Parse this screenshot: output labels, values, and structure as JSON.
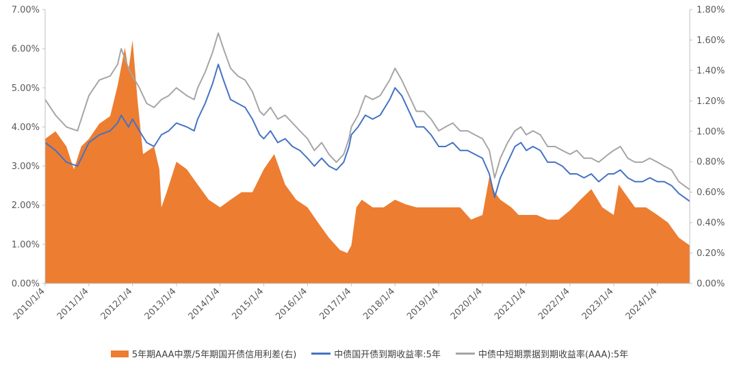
{
  "chart_data": {
    "type": "area+line",
    "title": "",
    "xlabel": "",
    "ylabel_left": "",
    "ylabel_right": "",
    "grid": false,
    "legend_position": "bottom",
    "x_range": [
      "2010/1/4",
      "2024/9/30"
    ],
    "x_ticks": [
      "2010/1/4",
      "2011/1/4",
      "2012/1/4",
      "2013/1/4",
      "2014/1/4",
      "2015/1/4",
      "2016/1/4",
      "2017/1/4",
      "2018/1/4",
      "2019/1/4",
      "2020/1/4",
      "2021/1/4",
      "2022/1/4",
      "2023/1/4",
      "2024/1/4"
    ],
    "y_left": {
      "range": [
        0,
        7
      ],
      "ticks": [
        "0.00%",
        "1.00%",
        "2.00%",
        "3.00%",
        "4.00%",
        "5.00%",
        "6.00%",
        "7.00%"
      ]
    },
    "y_right": {
      "range": [
        0,
        1.8
      ],
      "ticks": [
        "0.00%",
        "0.20%",
        "0.40%",
        "0.60%",
        "0.80%",
        "1.00%",
        "1.20%",
        "1.40%",
        "1.60%",
        "1.80%"
      ]
    },
    "series": [
      {
        "name": "5年期AAA中票/5年期国开债信用利差(右)",
        "type": "area",
        "axis": "right",
        "color": "#ED7D31",
        "x": [
          "2010/1/4",
          "2010/4/1",
          "2010/7/1",
          "2010/9/1",
          "2010/11/1",
          "2011/1/4",
          "2011/4/1",
          "2011/7/1",
          "2011/9/1",
          "2011/11/1",
          "2011/12/1",
          "2012/1/4",
          "2012/2/15",
          "2012/4/1",
          "2012/7/1",
          "2012/8/15",
          "2012/9/1",
          "2012/10/15",
          "2013/1/4",
          "2013/4/1",
          "2013/7/1",
          "2013/10/1",
          "2014/1/4",
          "2014/4/1",
          "2014/7/1",
          "2014/10/1",
          "2015/1/4",
          "2015/4/1",
          "2015/7/1",
          "2015/10/1",
          "2016/1/4",
          "2016/4/1",
          "2016/7/1",
          "2016/10/1",
          "2016/12/1",
          "2017/1/4",
          "2017/2/15",
          "2017/4/1",
          "2017/7/1",
          "2017/10/1",
          "2018/1/4",
          "2018/4/1",
          "2018/7/1",
          "2018/10/1",
          "2019/1/4",
          "2019/4/1",
          "2019/7/1",
          "2019/10/1",
          "2020/1/4",
          "2020/3/1",
          "2020/4/15",
          "2020/6/1",
          "2020/9/1",
          "2020/11/1",
          "2021/1/4",
          "2021/4/1",
          "2021/7/1",
          "2021/10/1",
          "2022/1/4",
          "2022/4/1",
          "2022/7/1",
          "2022/10/1",
          "2023/1/4",
          "2023/2/15",
          "2023/4/1",
          "2023/7/1",
          "2023/10/1",
          "2024/1/4",
          "2024/4/1",
          "2024/7/1",
          "2024/9/30"
        ],
        "values": [
          0.95,
          1.0,
          0.9,
          0.75,
          0.9,
          0.95,
          1.05,
          1.1,
          1.3,
          1.55,
          1.4,
          1.6,
          1.2,
          0.85,
          0.9,
          0.75,
          0.5,
          0.6,
          0.8,
          0.75,
          0.65,
          0.55,
          0.5,
          0.55,
          0.6,
          0.6,
          0.75,
          0.85,
          0.65,
          0.55,
          0.5,
          0.4,
          0.3,
          0.22,
          0.2,
          0.25,
          0.5,
          0.55,
          0.5,
          0.5,
          0.55,
          0.52,
          0.5,
          0.5,
          0.5,
          0.5,
          0.5,
          0.42,
          0.45,
          0.7,
          0.6,
          0.55,
          0.5,
          0.45,
          0.45,
          0.45,
          0.42,
          0.42,
          0.48,
          0.55,
          0.62,
          0.5,
          0.45,
          0.65,
          0.6,
          0.5,
          0.5,
          0.45,
          0.4,
          0.3,
          0.25
        ]
      },
      {
        "name": "中债国开债到期收益率:5年",
        "type": "line",
        "axis": "left",
        "color": "#4472C4",
        "x": [
          "2010/1/4",
          "2010/4/1",
          "2010/7/1",
          "2010/10/1",
          "2011/1/4",
          "2011/4/1",
          "2011/7/1",
          "2011/9/1",
          "2011/10/1",
          "2011/12/1",
          "2012/1/4",
          "2012/3/1",
          "2012/5/1",
          "2012/7/1",
          "2012/9/1",
          "2012/11/1",
          "2013/1/4",
          "2013/4/1",
          "2013/6/1",
          "2013/7/1",
          "2013/9/1",
          "2013/11/1",
          "2013/12/20",
          "2014/2/1",
          "2014/4/1",
          "2014/6/1",
          "2014/8/1",
          "2014/10/1",
          "2014/12/1",
          "2015/1/4",
          "2015/3/1",
          "2015/5/1",
          "2015/7/1",
          "2015/9/1",
          "2015/11/1",
          "2016/1/4",
          "2016/3/1",
          "2016/5/1",
          "2016/7/1",
          "2016/9/1",
          "2016/11/1",
          "2016/12/15",
          "2017/1/4",
          "2017/3/1",
          "2017/5/1",
          "2017/7/1",
          "2017/9/1",
          "2017/11/20",
          "2018/1/4",
          "2018/3/1",
          "2018/5/1",
          "2018/7/1",
          "2018/9/1",
          "2018/11/1",
          "2019/1/4",
          "2019/3/1",
          "2019/5/1",
          "2019/7/1",
          "2019/9/1",
          "2019/11/1",
          "2020/1/4",
          "2020/3/1",
          "2020/4/15",
          "2020/6/1",
          "2020/8/1",
          "2020/10/1",
          "2020/11/20",
          "2021/1/4",
          "2021/3/1",
          "2021/5/1",
          "2021/7/1",
          "2021/9/1",
          "2021/11/1",
          "2022/1/4",
          "2022/3/1",
          "2022/5/1",
          "2022/7/1",
          "2022/9/1",
          "2022/11/20",
          "2023/1/4",
          "2023/3/1",
          "2023/5/1",
          "2023/7/1",
          "2023/9/1",
          "2023/11/1",
          "2024/1/4",
          "2024/3/1",
          "2024/5/1",
          "2024/7/1",
          "2024/9/30"
        ],
        "values": [
          3.6,
          3.4,
          3.1,
          3.0,
          3.6,
          3.8,
          3.9,
          4.1,
          4.3,
          4.0,
          4.2,
          3.9,
          3.6,
          3.5,
          3.8,
          3.9,
          4.1,
          4.0,
          3.9,
          4.2,
          4.6,
          5.1,
          5.6,
          5.2,
          4.7,
          4.6,
          4.5,
          4.2,
          3.8,
          3.7,
          3.9,
          3.6,
          3.7,
          3.5,
          3.4,
          3.2,
          3.0,
          3.2,
          3.0,
          2.9,
          3.1,
          3.5,
          3.8,
          4.0,
          4.3,
          4.2,
          4.3,
          4.7,
          5.0,
          4.8,
          4.4,
          4.0,
          4.0,
          3.8,
          3.5,
          3.5,
          3.6,
          3.4,
          3.4,
          3.3,
          3.2,
          2.8,
          2.2,
          2.7,
          3.1,
          3.5,
          3.6,
          3.4,
          3.5,
          3.4,
          3.1,
          3.1,
          3.0,
          2.8,
          2.8,
          2.7,
          2.8,
          2.6,
          2.8,
          2.8,
          2.9,
          2.7,
          2.6,
          2.6,
          2.7,
          2.6,
          2.6,
          2.5,
          2.3,
          2.1
        ]
      },
      {
        "name": "中债中短期票据到期收益率(AAA):5年",
        "type": "line",
        "axis": "left",
        "color": "#A5A5A5",
        "x": [
          "2010/1/4",
          "2010/4/1",
          "2010/7/1",
          "2010/10/1",
          "2011/1/4",
          "2011/4/1",
          "2011/7/1",
          "2011/9/1",
          "2011/10/1",
          "2011/12/1",
          "2012/1/4",
          "2012/3/1",
          "2012/5/1",
          "2012/7/1",
          "2012/9/1",
          "2012/11/1",
          "2013/1/4",
          "2013/4/1",
          "2013/6/1",
          "2013/7/1",
          "2013/9/1",
          "2013/11/1",
          "2013/12/20",
          "2014/2/1",
          "2014/4/1",
          "2014/6/1",
          "2014/8/1",
          "2014/10/1",
          "2014/12/1",
          "2015/1/4",
          "2015/3/1",
          "2015/5/1",
          "2015/7/1",
          "2015/9/1",
          "2015/11/1",
          "2016/1/4",
          "2016/3/1",
          "2016/5/1",
          "2016/7/1",
          "2016/9/1",
          "2016/11/1",
          "2016/12/15",
          "2017/1/4",
          "2017/3/1",
          "2017/5/1",
          "2017/7/1",
          "2017/9/1",
          "2017/11/20",
          "2018/1/4",
          "2018/3/1",
          "2018/5/1",
          "2018/7/1",
          "2018/9/1",
          "2018/11/1",
          "2019/1/4",
          "2019/3/1",
          "2019/5/1",
          "2019/7/1",
          "2019/9/1",
          "2019/11/1",
          "2020/1/4",
          "2020/3/1",
          "2020/4/15",
          "2020/6/1",
          "2020/8/1",
          "2020/10/1",
          "2020/11/20",
          "2021/1/4",
          "2021/3/1",
          "2021/5/1",
          "2021/7/1",
          "2021/9/1",
          "2021/11/1",
          "2022/1/4",
          "2022/3/1",
          "2022/5/1",
          "2022/7/1",
          "2022/9/1",
          "2022/11/20",
          "2023/1/4",
          "2023/3/1",
          "2023/5/1",
          "2023/7/1",
          "2023/9/1",
          "2023/11/1",
          "2024/1/4",
          "2024/3/1",
          "2024/5/1",
          "2024/7/1",
          "2024/9/30"
        ],
        "values": [
          4.7,
          4.3,
          4.0,
          3.9,
          4.8,
          5.2,
          5.3,
          5.6,
          6.0,
          5.5,
          5.3,
          5.0,
          4.6,
          4.5,
          4.7,
          4.8,
          5.0,
          4.8,
          4.7,
          5.0,
          5.4,
          5.9,
          6.4,
          6.0,
          5.5,
          5.3,
          5.2,
          4.9,
          4.4,
          4.3,
          4.5,
          4.2,
          4.3,
          4.1,
          3.9,
          3.7,
          3.4,
          3.6,
          3.3,
          3.1,
          3.3,
          3.7,
          4.0,
          4.3,
          4.8,
          4.7,
          4.8,
          5.2,
          5.5,
          5.2,
          4.8,
          4.4,
          4.4,
          4.2,
          3.9,
          4.0,
          4.1,
          3.9,
          3.9,
          3.8,
          3.7,
          3.4,
          2.7,
          3.2,
          3.6,
          3.9,
          4.0,
          3.8,
          3.9,
          3.8,
          3.5,
          3.5,
          3.4,
          3.3,
          3.4,
          3.2,
          3.2,
          3.1,
          3.3,
          3.4,
          3.5,
          3.2,
          3.1,
          3.1,
          3.2,
          3.1,
          3.0,
          2.9,
          2.6,
          2.4
        ]
      }
    ]
  }
}
